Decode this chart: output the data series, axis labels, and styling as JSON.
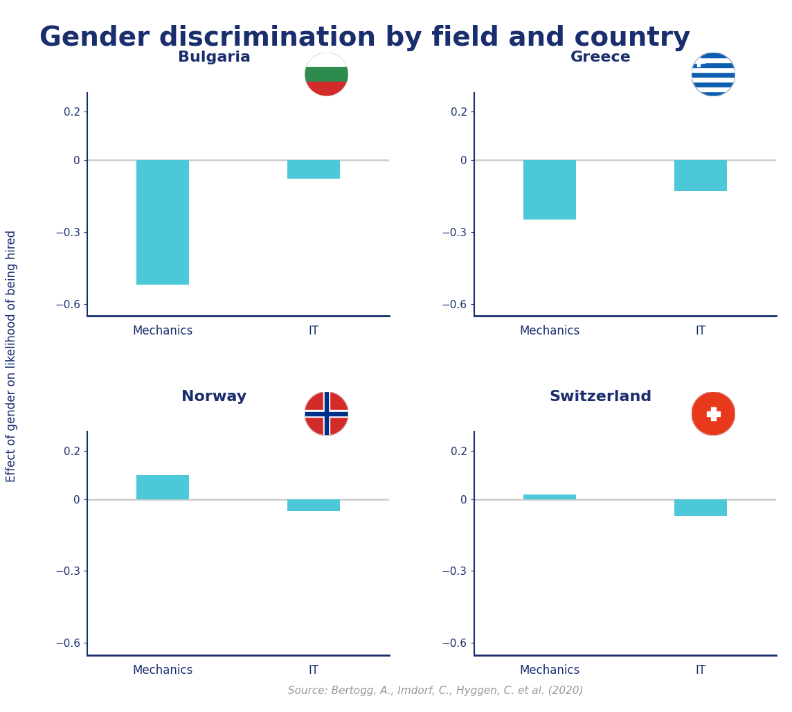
{
  "title": "Gender discrimination by field and country",
  "title_color": "#1a2e6e",
  "title_fontsize": 28,
  "ylabel": "Effect of gender on likelihood of being hired",
  "ylabel_color": "#1a2e6e",
  "source_text": "Source: Bertogg, A., Imdorf, C., Hyggen, C. et al. (2020)",
  "source_color": "#999999",
  "bar_color": "#4dc8d8",
  "axis_color": "#1a2e6e",
  "tick_color": "#1a2e6e",
  "zero_line_color": "#cccccc",
  "background_color": "#ffffff",
  "ylim": [
    -0.65,
    0.28
  ],
  "yticks": [
    -0.6,
    -0.3,
    0.0,
    0.2
  ],
  "countries": [
    "Bulgaria",
    "Greece",
    "Norway",
    "Switzerland"
  ],
  "fields": [
    "Mechanics",
    "IT"
  ],
  "values": {
    "Bulgaria": {
      "Mechanics": -0.52,
      "IT": -0.08
    },
    "Greece": {
      "Mechanics": -0.25,
      "IT": -0.13
    },
    "Norway": {
      "Mechanics": 0.1,
      "IT": -0.05
    },
    "Switzerland": {
      "Mechanics": 0.02,
      "IT": -0.07
    }
  },
  "bar_width": 0.35,
  "x_positions": [
    0.5,
    1.5
  ]
}
